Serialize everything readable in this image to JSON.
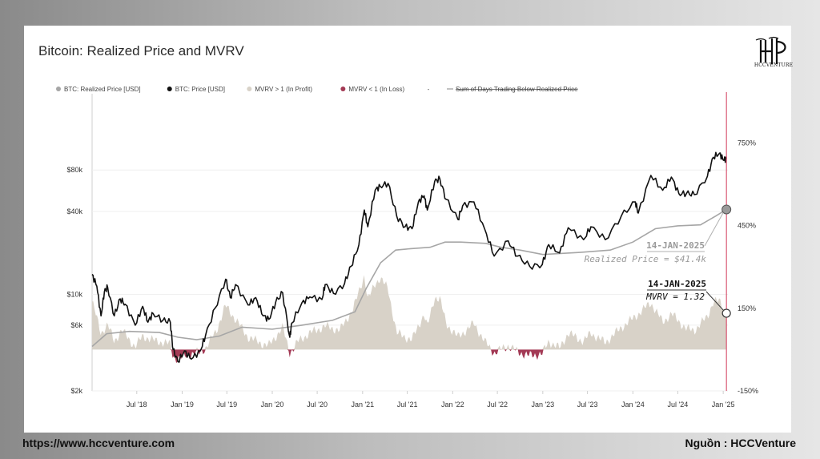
{
  "footer": {
    "url": "https://www.hccventure.com",
    "source": "Nguồn : HCCVenture"
  },
  "logo": {
    "text": "HCCVENTURE"
  },
  "colors": {
    "price": "#111111",
    "realized": "#a6a6a6",
    "profit": "#d8d2c8",
    "loss": "#a33a55",
    "marker": "#d23a5a"
  },
  "chart_data": {
    "type": "line",
    "title": "Bitcoin: Realized Price and MVRV",
    "legend": [
      {
        "label": "BTC: Realized Price [USD]",
        "color": "#a6a6a6",
        "style": "dot"
      },
      {
        "label": "BTC: Price [USD]",
        "color": "#111111",
        "style": "dot"
      },
      {
        "label": "MVRV > 1 (In Profit)",
        "color": "#d8d2c8",
        "style": "dot"
      },
      {
        "label": "MVRV < 1 (In Loss)",
        "color": "#a33a55",
        "style": "dot"
      },
      {
        "label": "-",
        "color": "#444444",
        "style": "text"
      },
      {
        "label": "Sum of Days Trading Below Realized Price",
        "color": "#999999",
        "style": "strike"
      }
    ],
    "legend_position": "top",
    "x_ticks": [
      "Jul '18",
      "Jan '19",
      "Jul '19",
      "Jan '20",
      "Jul '20",
      "Jan '21",
      "Jul '21",
      "Jan '22",
      "Jul '22",
      "Jan '23",
      "Jul '23",
      "Jan '24",
      "Jul '24",
      "Jan '25"
    ],
    "x_range": [
      "2018-01-01",
      "2025-01-20"
    ],
    "y_left": {
      "scale": "log",
      "range": [
        2000,
        250000
      ],
      "ticks": [
        {
          "v": 2000,
          "label": "$2k"
        },
        {
          "v": 6000,
          "label": "$6k"
        },
        {
          "v": 10000,
          "label": "$10k"
        },
        {
          "v": 40000,
          "label": "$40k"
        },
        {
          "v": 80000,
          "label": "$80k"
        }
      ]
    },
    "y_right": {
      "scale": "linear",
      "unit": "%",
      "range": [
        -150,
        900
      ],
      "ticks": [
        {
          "v": -150,
          "label": "-150%"
        },
        {
          "v": 150,
          "label": "150%"
        },
        {
          "v": 450,
          "label": "450%"
        },
        {
          "v": 750,
          "label": "750%"
        }
      ]
    },
    "grid": true,
    "price_series": {
      "name": "BTC: Price [USD]",
      "points": [
        [
          "2018-01-01",
          14000
        ],
        [
          "2018-01-20",
          11500
        ],
        [
          "2018-02-06",
          7000
        ],
        [
          "2018-02-20",
          10500
        ],
        [
          "2018-03-05",
          11300
        ],
        [
          "2018-04-01",
          7000
        ],
        [
          "2018-04-25",
          9300
        ],
        [
          "2018-05-15",
          8500
        ],
        [
          "2018-06-25",
          6000
        ],
        [
          "2018-07-25",
          8200
        ],
        [
          "2018-08-15",
          6300
        ],
        [
          "2018-09-05",
          7300
        ],
        [
          "2018-10-15",
          6500
        ],
        [
          "2018-11-14",
          6300
        ],
        [
          "2018-11-25",
          4000
        ],
        [
          "2018-12-15",
          3250
        ],
        [
          "2019-01-10",
          3900
        ],
        [
          "2019-02-07",
          3400
        ],
        [
          "2019-03-15",
          3900
        ],
        [
          "2019-04-05",
          5000
        ],
        [
          "2019-05-15",
          8000
        ],
        [
          "2019-06-26",
          12900
        ],
        [
          "2019-07-15",
          9500
        ],
        [
          "2019-08-05",
          11800
        ],
        [
          "2019-09-25",
          8400
        ],
        [
          "2019-10-26",
          9500
        ],
        [
          "2019-11-25",
          7000
        ],
        [
          "2019-12-18",
          6600
        ],
        [
          "2020-01-15",
          8800
        ],
        [
          "2020-02-12",
          10300
        ],
        [
          "2020-03-12",
          4900
        ],
        [
          "2020-03-20",
          6200
        ],
        [
          "2020-04-30",
          8700
        ],
        [
          "2020-06-01",
          9600
        ],
        [
          "2020-07-20",
          9200
        ],
        [
          "2020-08-02",
          11800
        ],
        [
          "2020-09-05",
          10200
        ],
        [
          "2020-10-20",
          12000
        ],
        [
          "2020-11-15",
          16000
        ],
        [
          "2020-12-17",
          23000
        ],
        [
          "2021-01-08",
          41000
        ],
        [
          "2021-01-22",
          31000
        ],
        [
          "2021-02-21",
          57000
        ],
        [
          "2021-03-13",
          61000
        ],
        [
          "2021-04-14",
          64000
        ],
        [
          "2021-05-19",
          37000
        ],
        [
          "2021-06-22",
          31000
        ],
        [
          "2021-07-20",
          30000
        ],
        [
          "2021-08-15",
          47000
        ],
        [
          "2021-09-07",
          52000
        ],
        [
          "2021-09-20",
          41000
        ],
        [
          "2021-10-20",
          66000
        ],
        [
          "2021-11-10",
          69000
        ],
        [
          "2021-12-05",
          49000
        ],
        [
          "2022-01-22",
          35000
        ],
        [
          "2022-02-10",
          44000
        ],
        [
          "2022-03-28",
          47000
        ],
        [
          "2022-05-10",
          30000
        ],
        [
          "2022-06-18",
          19000
        ],
        [
          "2022-08-14",
          24500
        ],
        [
          "2022-09-20",
          19000
        ],
        [
          "2022-11-09",
          16000
        ],
        [
          "2022-12-30",
          16500
        ],
        [
          "2023-01-25",
          23000
        ],
        [
          "2023-03-10",
          20000
        ],
        [
          "2023-04-14",
          30500
        ],
        [
          "2023-06-15",
          25000
        ],
        [
          "2023-07-15",
          31000
        ],
        [
          "2023-09-11",
          25000
        ],
        [
          "2023-11-15",
          37000
        ],
        [
          "2024-01-11",
          47000
        ],
        [
          "2024-01-23",
          39000
        ],
        [
          "2024-03-14",
          73000
        ],
        [
          "2024-05-01",
          57000
        ],
        [
          "2024-06-05",
          71000
        ],
        [
          "2024-07-05",
          54000
        ],
        [
          "2024-08-05",
          54000
        ],
        [
          "2024-09-06",
          53000
        ],
        [
          "2024-10-29",
          72000
        ],
        [
          "2024-11-22",
          99000
        ],
        [
          "2024-12-17",
          106000
        ],
        [
          "2025-01-02",
          94000
        ],
        [
          "2025-01-14",
          97000
        ]
      ]
    },
    "realized_series": {
      "name": "BTC: Realized Price [USD]",
      "points": [
        [
          "2018-01-01",
          4200
        ],
        [
          "2018-03-01",
          5200
        ],
        [
          "2018-06-01",
          5400
        ],
        [
          "2018-10-01",
          5300
        ],
        [
          "2018-12-15",
          4900
        ],
        [
          "2019-03-01",
          4700
        ],
        [
          "2019-06-01",
          5000
        ],
        [
          "2019-09-01",
          5800
        ],
        [
          "2020-01-01",
          5600
        ],
        [
          "2020-05-01",
          6000
        ],
        [
          "2020-09-01",
          6500
        ],
        [
          "2020-12-01",
          7500
        ],
        [
          "2021-01-15",
          11000
        ],
        [
          "2021-03-15",
          17000
        ],
        [
          "2021-05-15",
          21000
        ],
        [
          "2021-07-15",
          21500
        ],
        [
          "2021-10-01",
          22000
        ],
        [
          "2021-12-01",
          24000
        ],
        [
          "2022-02-01",
          24000
        ],
        [
          "2022-05-15",
          23500
        ],
        [
          "2022-07-15",
          22000
        ],
        [
          "2022-10-01",
          21000
        ],
        [
          "2023-01-01",
          19500
        ],
        [
          "2023-06-01",
          20200
        ],
        [
          "2023-10-01",
          21000
        ],
        [
          "2024-01-01",
          24000
        ],
        [
          "2024-04-01",
          30000
        ],
        [
          "2024-07-01",
          31500
        ],
        [
          "2024-10-01",
          32000
        ],
        [
          "2024-12-01",
          37000
        ],
        [
          "2025-01-14",
          41400
        ]
      ]
    },
    "mvrv_series": {
      "name": "MVRV",
      "note": "shaded area, right axis in %",
      "points": [
        [
          "2018-01-01",
          175
        ],
        [
          "2018-02-06",
          60
        ],
        [
          "2018-03-05",
          90
        ],
        [
          "2018-04-01",
          30
        ],
        [
          "2018-05-01",
          70
        ],
        [
          "2018-06-25",
          10
        ],
        [
          "2018-07-25",
          50
        ],
        [
          "2018-09-01",
          35
        ],
        [
          "2018-11-14",
          20
        ],
        [
          "2018-11-25",
          -25
        ],
        [
          "2018-12-15",
          -35
        ],
        [
          "2019-01-15",
          -20
        ],
        [
          "2019-03-15",
          -10
        ],
        [
          "2019-04-10",
          10
        ],
        [
          "2019-05-20",
          70
        ],
        [
          "2019-06-26",
          160
        ],
        [
          "2019-08-05",
          110
        ],
        [
          "2019-09-25",
          45
        ],
        [
          "2019-11-25",
          20
        ],
        [
          "2019-12-18",
          15
        ],
        [
          "2020-02-12",
          80
        ],
        [
          "2020-03-12",
          -12
        ],
        [
          "2020-04-15",
          30
        ],
        [
          "2020-06-01",
          60
        ],
        [
          "2020-08-02",
          85
        ],
        [
          "2020-10-01",
          70
        ],
        [
          "2020-11-25",
          150
        ],
        [
          "2021-01-08",
          270
        ],
        [
          "2021-01-22",
          180
        ],
        [
          "2021-02-21",
          240
        ],
        [
          "2021-03-13",
          260
        ],
        [
          "2021-04-14",
          220
        ],
        [
          "2021-05-19",
          60
        ],
        [
          "2021-07-20",
          35
        ],
        [
          "2021-09-07",
          130
        ],
        [
          "2021-09-20",
          80
        ],
        [
          "2021-10-20",
          190
        ],
        [
          "2021-11-10",
          185
        ],
        [
          "2021-12-05",
          95
        ],
        [
          "2022-01-22",
          45
        ],
        [
          "2022-03-28",
          95
        ],
        [
          "2022-05-10",
          30
        ],
        [
          "2022-06-18",
          -12
        ],
        [
          "2022-08-14",
          15
        ],
        [
          "2022-09-20",
          -8
        ],
        [
          "2022-11-09",
          -22
        ],
        [
          "2022-12-30",
          -15
        ],
        [
          "2023-01-25",
          30
        ],
        [
          "2023-03-10",
          5
        ],
        [
          "2023-04-14",
          60
        ],
        [
          "2023-06-15",
          30
        ],
        [
          "2023-07-15",
          60
        ],
        [
          "2023-09-11",
          25
        ],
        [
          "2023-11-15",
          80
        ],
        [
          "2024-01-11",
          120
        ],
        [
          "2024-03-14",
          170
        ],
        [
          "2024-05-01",
          100
        ],
        [
          "2024-06-05",
          130
        ],
        [
          "2024-08-05",
          75
        ],
        [
          "2024-09-06",
          70
        ],
        [
          "2024-10-29",
          120
        ],
        [
          "2024-11-22",
          175
        ],
        [
          "2024-12-17",
          175
        ],
        [
          "2025-01-14",
          132
        ]
      ]
    },
    "marker_date": "2025-01-14",
    "annotations": [
      {
        "date": "14-JAN-2025",
        "text": "Realized Price = $41.4k"
      },
      {
        "date": "14-JAN-2025",
        "text": "MVRV = 1.32"
      }
    ]
  }
}
